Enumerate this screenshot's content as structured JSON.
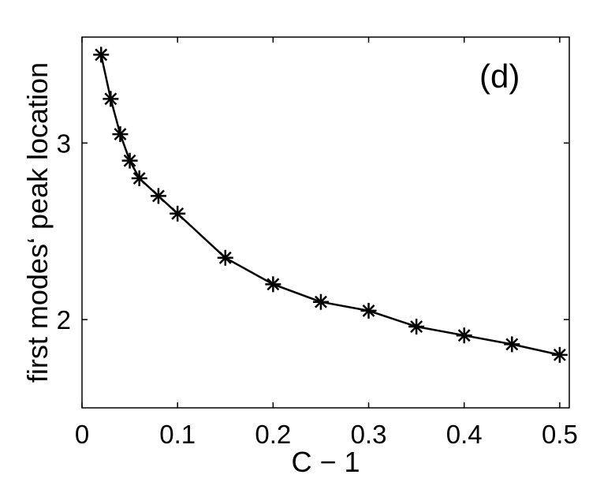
{
  "chart_data": {
    "type": "line",
    "xlabel": "C − 1",
    "ylabel": "first modes‘ peak location",
    "annotation": "(d)",
    "xlim": [
      0,
      0.51
    ],
    "ylim": [
      1.5,
      3.6
    ],
    "x_ticks": [
      0,
      0.1,
      0.2,
      0.3,
      0.4,
      0.5
    ],
    "x_tick_labels": [
      "0",
      "0.1",
      "0.2",
      "0.3",
      "0.4",
      "0.5"
    ],
    "y_ticks": [
      2,
      3
    ],
    "y_tick_labels": [
      "2",
      "3"
    ],
    "grid": false,
    "marker": "asterisk",
    "line_color": "#000000",
    "series": [
      {
        "x": [
          0.02,
          0.03,
          0.04,
          0.05,
          0.06,
          0.08,
          0.1,
          0.15,
          0.2,
          0.25,
          0.3,
          0.35,
          0.4,
          0.45,
          0.5
        ],
        "y": [
          3.5,
          3.25,
          3.05,
          2.9,
          2.8,
          2.7,
          2.6,
          2.35,
          2.2,
          2.1,
          2.05,
          1.96,
          1.91,
          1.86,
          1.8
        ]
      }
    ]
  }
}
